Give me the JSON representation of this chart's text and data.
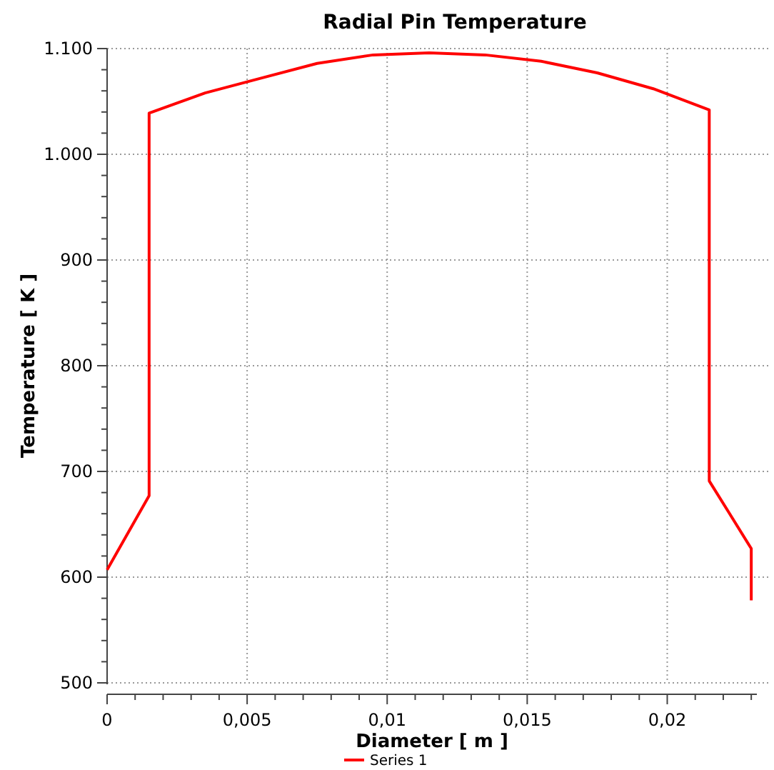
{
  "chart_data": {
    "type": "line",
    "title": "Radial Pin Temperature",
    "xlabel": "Diameter [ m ]",
    "ylabel": "Temperature [ K ]",
    "x": [
      0,
      0.0015,
      0.0015,
      0.0035,
      0.0055,
      0.0075,
      0.0095,
      0.0115,
      0.0135,
      0.0155,
      0.0175,
      0.0195,
      0.0215,
      0.0215,
      0.023,
      0.023
    ],
    "series": [
      {
        "name": "Series 1",
        "color": "#ff0000",
        "values": [
          607,
          677,
          1039,
          1058,
          1072,
          1086,
          1094,
          1096,
          1094,
          1088,
          1077,
          1062,
          1042,
          691,
          627,
          578
        ]
      }
    ],
    "xlim": [
      0,
      0.0232
    ],
    "ylim": [
      500,
      1100
    ],
    "xticks": [
      {
        "value": 0,
        "label": "0"
      },
      {
        "value": 0.001,
        "label": null
      },
      {
        "value": 0.002,
        "label": null
      },
      {
        "value": 0.003,
        "label": null
      },
      {
        "value": 0.004,
        "label": null
      },
      {
        "value": 0.005,
        "label": "0,005"
      },
      {
        "value": 0.006,
        "label": null
      },
      {
        "value": 0.007,
        "label": null
      },
      {
        "value": 0.008,
        "label": null
      },
      {
        "value": 0.009,
        "label": null
      },
      {
        "value": 0.01,
        "label": "0,01"
      },
      {
        "value": 0.011,
        "label": null
      },
      {
        "value": 0.012,
        "label": null
      },
      {
        "value": 0.013,
        "label": null
      },
      {
        "value": 0.014,
        "label": null
      },
      {
        "value": 0.015,
        "label": "0,015"
      },
      {
        "value": 0.016,
        "label": null
      },
      {
        "value": 0.017,
        "label": null
      },
      {
        "value": 0.018,
        "label": null
      },
      {
        "value": 0.019,
        "label": null
      },
      {
        "value": 0.02,
        "label": "0,02"
      },
      {
        "value": 0.021,
        "label": null
      },
      {
        "value": 0.022,
        "label": null
      },
      {
        "value": 0.023,
        "label": null
      }
    ],
    "yticks": [
      500,
      {
        "value": 520,
        "label": null
      },
      {
        "value": 540,
        "label": null
      },
      {
        "value": 560,
        "label": null
      },
      {
        "value": 580,
        "label": null
      },
      600,
      {
        "value": 620,
        "label": null
      },
      {
        "value": 640,
        "label": null
      },
      {
        "value": 660,
        "label": null
      },
      {
        "value": 680,
        "label": null
      },
      700,
      {
        "value": 720,
        "label": null
      },
      {
        "value": 740,
        "label": null
      },
      {
        "value": 760,
        "label": null
      },
      {
        "value": 780,
        "label": null
      },
      800,
      {
        "value": 820,
        "label": null
      },
      {
        "value": 840,
        "label": null
      },
      {
        "value": 860,
        "label": null
      },
      {
        "value": 880,
        "label": null
      },
      900,
      {
        "value": 920,
        "label": null
      },
      {
        "value": 940,
        "label": null
      },
      {
        "value": 960,
        "label": null
      },
      {
        "value": 980,
        "label": null
      },
      {
        "value": 1000,
        "label": "1.000"
      },
      {
        "value": 1020,
        "label": null
      },
      {
        "value": 1040,
        "label": null
      },
      {
        "value": 1060,
        "label": null
      },
      {
        "value": 1080,
        "label": null
      },
      {
        "value": 1100,
        "label": "1.100"
      }
    ],
    "grid": true,
    "legend": "bottom",
    "marker": "none",
    "line_style": "solid"
  }
}
